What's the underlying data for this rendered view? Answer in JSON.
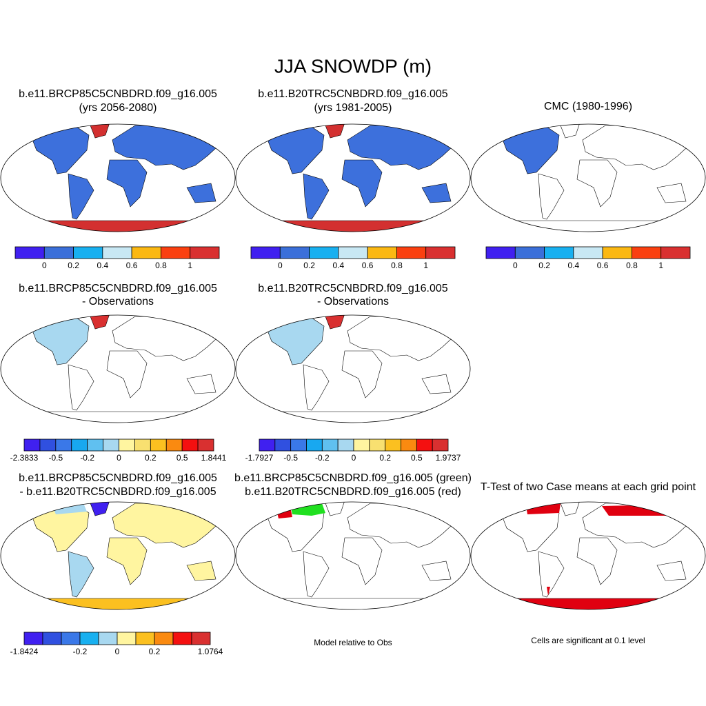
{
  "title": "JJA SNOWDP (m)",
  "panels": [
    {
      "title": [
        "b.e11.BRCP85C5CNBDRD.f09_g16.005",
        "(yrs 2056-2080)"
      ],
      "colorbar": {
        "colors": [
          "#4020f0",
          "#3b6fd9",
          "#18b0f0",
          "#c8e8f4",
          "#fbb813",
          "#fa4010",
          "#d93030"
        ],
        "labels": [
          "0",
          "0.2",
          "0.4",
          "0.6",
          "0.8",
          "1"
        ]
      }
    },
    {
      "title": [
        "b.e11.B20TRC5CNBDRD.f09_g16.005",
        "(yrs 1981-2005)"
      ],
      "colorbar": {
        "colors": [
          "#4020f0",
          "#3b6fd9",
          "#18b0f0",
          "#c8e8f4",
          "#fbb813",
          "#fa4010",
          "#d93030"
        ],
        "labels": [
          "0",
          "0.2",
          "0.4",
          "0.6",
          "0.8",
          "1"
        ]
      }
    },
    {
      "title": [
        "CMC (1980-1996)"
      ],
      "colorbar": {
        "colors": [
          "#4020f0",
          "#3b6fd9",
          "#18b0f0",
          "#c8e8f4",
          "#fbb813",
          "#fa4010",
          "#d93030"
        ],
        "labels": [
          "0",
          "0.2",
          "0.4",
          "0.6",
          "0.8",
          "1"
        ]
      }
    },
    {
      "title": [
        "b.e11.BRCP85C5CNBDRD.f09_g16.005",
        "- Observations"
      ],
      "colorbar": {
        "colors": [
          "#4020f0",
          "#3050e0",
          "#3a78e8",
          "#18a8f0",
          "#60c0f0",
          "#a8d8f0",
          "#fff5a0",
          "#f8e070",
          "#fbc020",
          "#fa8a10",
          "#f41010",
          "#d93030"
        ],
        "labels": [
          "-2.3833",
          "-0.5",
          "-0.2",
          "0",
          "0.2",
          "0.5",
          "1.8441"
        ]
      }
    },
    {
      "title": [
        "b.e11.B20TRC5CNBDRD.f09_g16.005",
        "- Observations"
      ],
      "colorbar": {
        "colors": [
          "#4020f0",
          "#3050e0",
          "#3a78e8",
          "#18a8f0",
          "#60c0f0",
          "#a8d8f0",
          "#fff5a0",
          "#f8e070",
          "#fbc020",
          "#fa8a10",
          "#f41010",
          "#d93030"
        ],
        "labels": [
          "-1.7927",
          "-0.5",
          "-0.2",
          "0",
          "0.2",
          "0.5",
          "1.9737"
        ]
      }
    },
    {
      "title": [
        "b.e11.BRCP85C5CNBDRD.f09_g16.005",
        "- b.e11.B20TRC5CNBDRD.f09_g16.005"
      ],
      "colorbar": {
        "colors": [
          "#4020f0",
          "#3050e0",
          "#3a78e8",
          "#18b0f0",
          "#a8d8f0",
          "#fff5a0",
          "#fbc020",
          "#fa8a10",
          "#f41010",
          "#d93030"
        ],
        "labels": [
          "-1.8424",
          "-0.2",
          "0",
          "0.2",
          "1.0764"
        ]
      }
    },
    {
      "title": [
        "b.e11.BRCP85C5CNBDRD.f09_g16.005 (green)",
        "b.e11.B20TRC5CNBDRD.f09_g16.005 (red)"
      ],
      "note": "Model relative to Obs"
    },
    {
      "title": [
        "T-Test of two Case means at each grid point"
      ],
      "note": "Cells are significant at 0.1 level"
    }
  ]
}
